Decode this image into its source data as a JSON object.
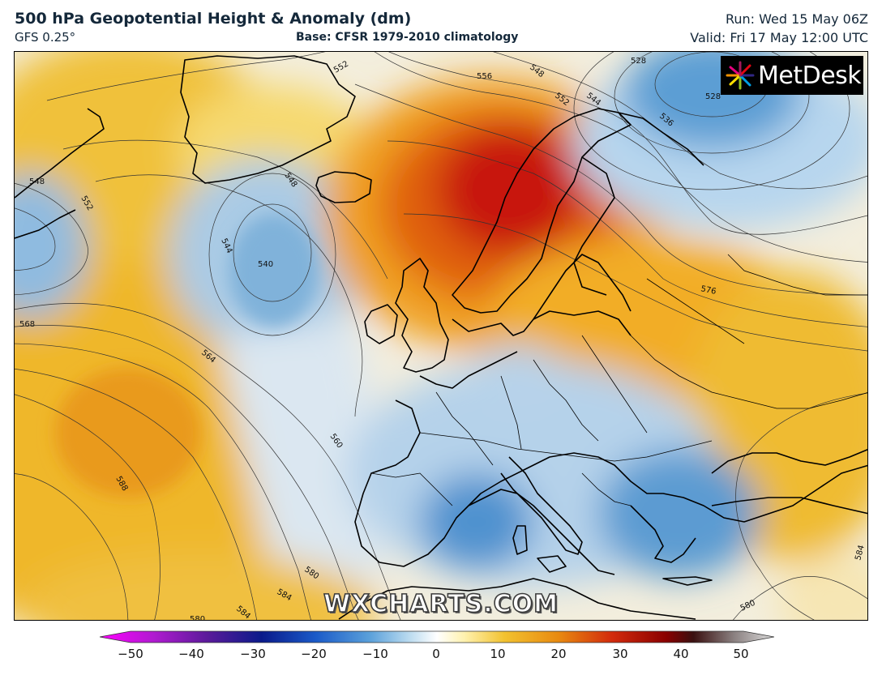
{
  "header": {
    "title": "500 hPa Geopotential Height & Anomaly (dm)",
    "model": "GFS 0.25°",
    "base": "Base: CFSR 1979-2010 climatology",
    "run": "Run: Wed 15 May 06Z",
    "valid": "Valid: Fri 17 May 12:00 UTC"
  },
  "logo": {
    "text": "MetDesk",
    "icon": "metdesk-pinwheel-icon"
  },
  "watermark": "WXCHARTS.COM",
  "colorbar": {
    "min": -50,
    "max": 50,
    "ticks": [
      "−50",
      "−40",
      "−30",
      "−20",
      "−10",
      "0",
      "10",
      "20",
      "30",
      "40",
      "50"
    ],
    "colors": {
      "neg_extreme": "#ff00ff",
      "neg_purple": "#6a1a9a",
      "neg_blue_dark": "#0a2a9a",
      "neg_blue": "#2a7ad0",
      "neg_light": "#bcdcf0",
      "zero": "#ffffff",
      "pos_light": "#fff2b0",
      "pos_yellow": "#f2c230",
      "pos_orange": "#e88a10",
      "pos_red": "#d22a0c",
      "pos_darkred": "#8a0000",
      "pos_extreme": "#c8c8c8"
    }
  },
  "contour_labels": [
    "528",
    "528",
    "536",
    "544",
    "548",
    "548",
    "548",
    "552",
    "552",
    "552",
    "556",
    "540",
    "544",
    "568",
    "564",
    "560",
    "576",
    "588",
    "580",
    "584",
    "584",
    "580",
    "580",
    "584"
  ],
  "map_layers": [
    "anomaly-shading",
    "height-contours",
    "coastlines",
    "country-borders"
  ]
}
